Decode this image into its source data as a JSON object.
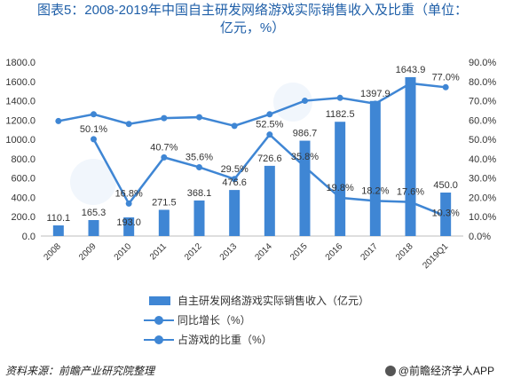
{
  "title_line1": "图表5：2008-2019年中国自主研发网络游戏实际销售收入及比重（单位：",
  "title_line2": "亿元，%）",
  "colors": {
    "bar": "#3f86d4",
    "line": "#3f86d4",
    "title": "#1f5fa8"
  },
  "chart_data": {
    "type": "bar",
    "categories": [
      "2008",
      "2009",
      "2010",
      "2011",
      "2012",
      "2013",
      "2014",
      "2015",
      "2016",
      "2017",
      "2018",
      "2019Q1"
    ],
    "y_left": {
      "min": 0,
      "max": 1800,
      "ticks": [
        "0.0",
        "200.0",
        "400.0",
        "600.0",
        "800.0",
        "1000.0",
        "1200.0",
        "1400.0",
        "1600.0",
        "1800.0"
      ]
    },
    "y_right": {
      "min": 0,
      "max": 90,
      "ticks": [
        "0.0%",
        "10.0%",
        "20.0%",
        "30.0%",
        "40.0%",
        "50.0%",
        "60.0%",
        "70.0%",
        "80.0%",
        "90.0%"
      ]
    },
    "grid": false,
    "legend_placement": "bottom",
    "series": [
      {
        "name": "自主研发网络游戏实际销售收入（亿元）",
        "kind": "bar",
        "axis": "left",
        "values": [
          110.1,
          165.3,
          193.0,
          271.5,
          368.1,
          476.6,
          726.6,
          986.7,
          1182.5,
          1397.9,
          1643.9,
          450.0
        ],
        "labels": [
          "110.1",
          "165.3",
          "193.0",
          "271.5",
          "368.1",
          "476.6",
          "726.6",
          "986.7",
          "1182.5",
          "1397.9",
          "1643.9",
          "450.0"
        ]
      },
      {
        "name": "同比增长（%）",
        "kind": "line",
        "axis": "right",
        "values": [
          null,
          50.1,
          16.8,
          40.7,
          35.6,
          29.5,
          52.5,
          35.8,
          19.8,
          18.2,
          17.6,
          10.3
        ],
        "labels": [
          "",
          "50.1%",
          "16.8%",
          "40.7%",
          "35.6%",
          "29.5%",
          "52.5%",
          "35.8%",
          "19.8%",
          "18.2%",
          "17.6%",
          "10.3%"
        ]
      },
      {
        "name": "占游戏的比重（%）",
        "kind": "line",
        "axis": "right",
        "values": [
          59.5,
          63.0,
          58.0,
          61.0,
          61.5,
          57.0,
          63.0,
          70.0,
          71.5,
          68.5,
          79.0,
          77.0
        ],
        "labels": [
          "",
          "",
          "",
          "",
          "",
          "",
          "",
          "",
          "",
          "",
          "",
          "77.0%"
        ]
      }
    ]
  },
  "source": "资料来源：前瞻产业研究院整理",
  "brand": "@前瞻经济学人APP"
}
